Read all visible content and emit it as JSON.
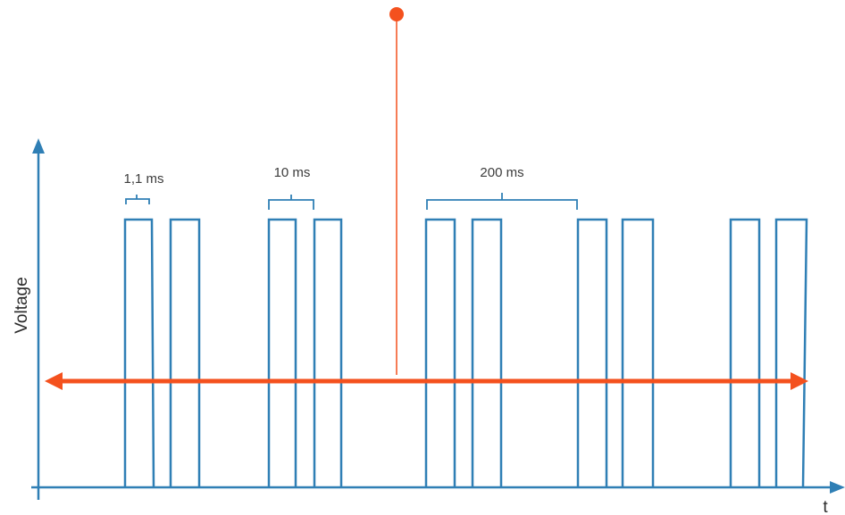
{
  "axes": {
    "y_label": "Voltage",
    "x_label": "t"
  },
  "annotations": {
    "pulse_width": "1,1 ms",
    "pair_spacing": "10 ms",
    "group_period": "200 ms"
  },
  "colors": {
    "signal": "#2f7fb5",
    "reference": "#f4511e"
  }
}
